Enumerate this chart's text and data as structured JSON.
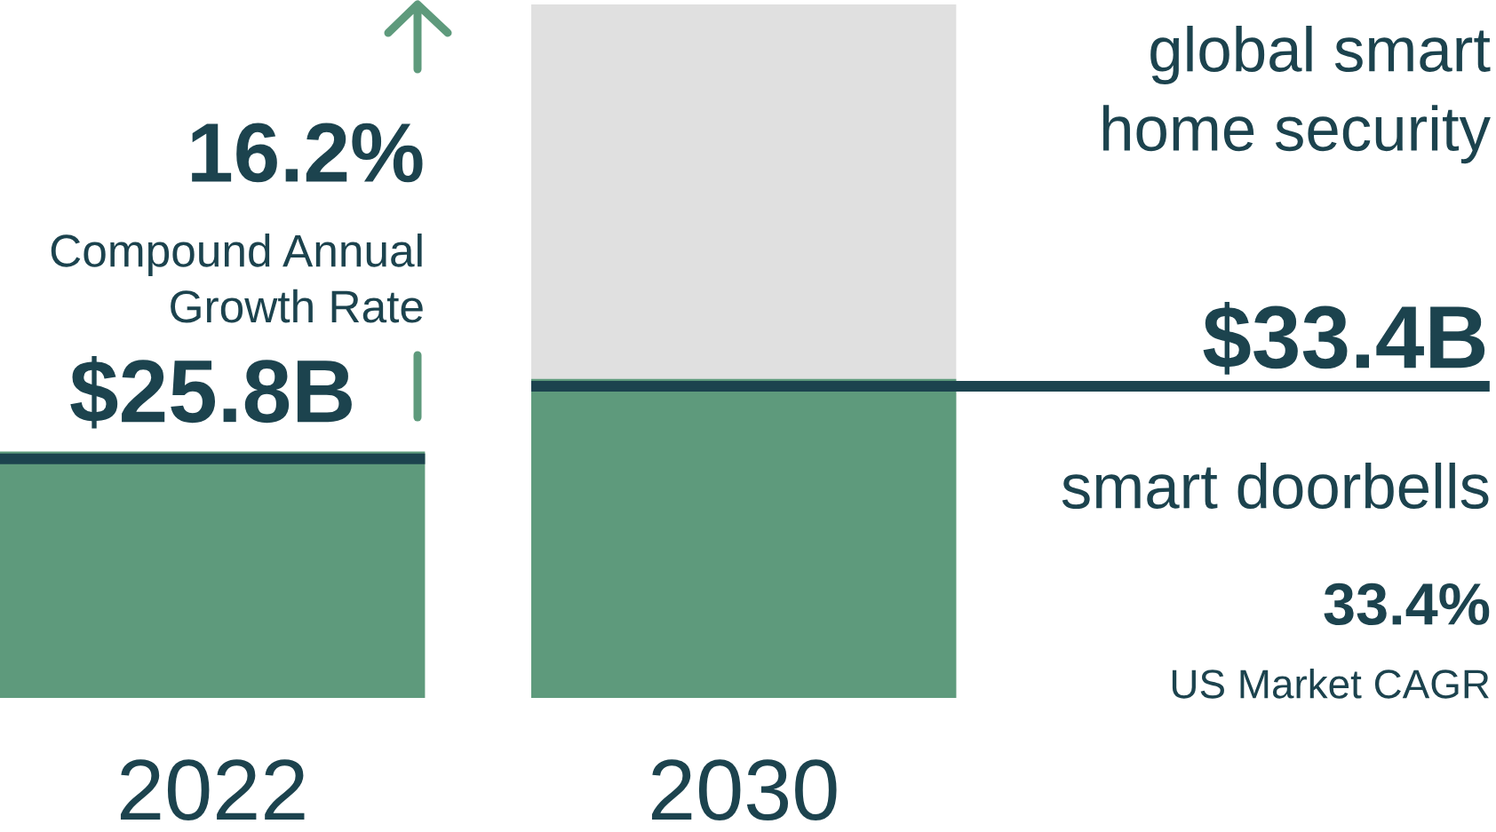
{
  "chart_data": {
    "type": "bar",
    "title": "global smart\nhome security",
    "categories": [
      "2022",
      "2030"
    ],
    "series": [
      {
        "color": "#5e9a7c",
        "values": [
          25.8,
          33.4
        ],
        "value_labels": [
          "$25.8B",
          "$33.4B"
        ]
      }
    ],
    "bands": [
      {
        "axis": "x",
        "from": "2030",
        "to": "2030",
        "color": "#e0e0e0"
      }
    ],
    "annotations": [
      "16.2%",
      "Compound Annual\nGrowth Rate",
      "smart doorbells",
      "33.4%",
      "US Market CAGR"
    ]
  }
}
